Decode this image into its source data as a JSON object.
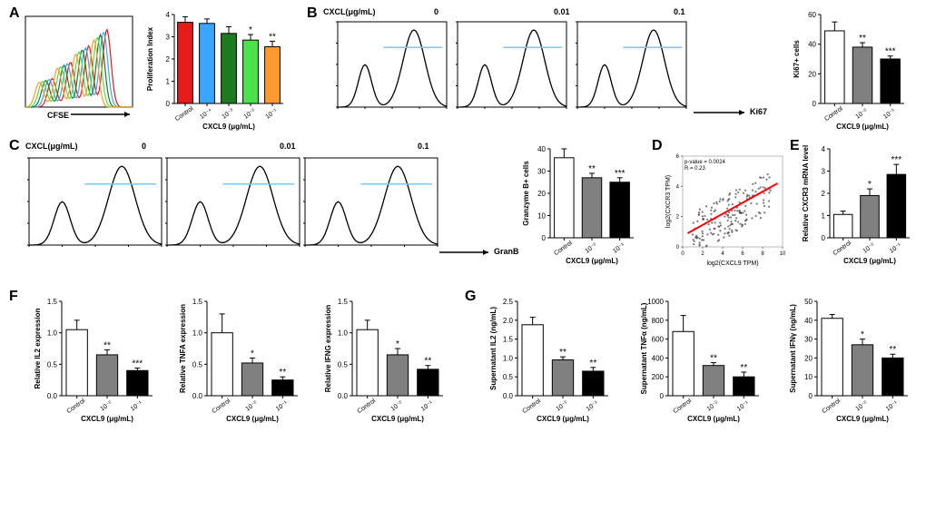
{
  "panels": {
    "A": {
      "letter": "A",
      "cfse_label": "CFSE",
      "x_title": "CXCL9 (μg/mL)",
      "y_title": "Proliferation Index",
      "cats": [
        "Control",
        "10⁻⁴",
        "10⁻³",
        "10⁻²",
        "10⁻¹"
      ],
      "bars": [
        {
          "v": 3.65,
          "err": 0.25,
          "fill": "#e51a1a",
          "stripe": false,
          "sig": ""
        },
        {
          "v": 3.6,
          "err": 0.2,
          "fill": "#3ba5ff",
          "stripe": false,
          "sig": ""
        },
        {
          "v": 3.15,
          "err": 0.3,
          "fill": "#1f7a1f",
          "stripe": false,
          "sig": ""
        },
        {
          "v": 2.85,
          "err": 0.25,
          "fill": "#4de24d",
          "stripe": false,
          "sig": "*"
        },
        {
          "v": 2.55,
          "err": 0.25,
          "fill": "#ff9a2e",
          "stripe": false,
          "sig": "**"
        }
      ],
      "ylim": [
        0,
        4
      ],
      "ytick": 1,
      "hist_colors": [
        "#e51a1a",
        "#3ba5ff",
        "#1f7a1f",
        "#4de24d",
        "#ff9a2e"
      ]
    },
    "B": {
      "letter": "B",
      "header": "CXCL(μg/mL)",
      "doses": [
        "0",
        "0.01",
        "0.1"
      ],
      "x_label": "Ki67",
      "y_title": "Ki67+ cells",
      "x_title": "CXCL9 (μg/mL)",
      "cats": [
        "Control",
        "10⁻²",
        "10⁻¹"
      ],
      "bars": [
        {
          "v": 49,
          "err": 6,
          "fill": "#ffffff",
          "pattern": "none",
          "sig": ""
        },
        {
          "v": 38,
          "err": 3,
          "fill": "#808080",
          "pattern": "none",
          "sig": "**"
        },
        {
          "v": 30,
          "err": 2,
          "fill": "#000000",
          "pattern": "none",
          "sig": "***"
        }
      ],
      "ylim": [
        0,
        60
      ],
      "ytick": 20
    },
    "C": {
      "letter": "C",
      "header": "CXCL(μg/mL)",
      "doses": [
        "0",
        "0.01",
        "0.1"
      ],
      "x_label": "GranB",
      "y_title": "Granzyme B+ cells",
      "x_title": "CXCL9 (μg/mL)",
      "cats": [
        "Control",
        "10⁻²",
        "10⁻¹"
      ],
      "bars": [
        {
          "v": 36,
          "err": 4,
          "fill": "#ffffff",
          "sig": ""
        },
        {
          "v": 27,
          "err": 2,
          "fill": "#808080",
          "sig": "**"
        },
        {
          "v": 25,
          "err": 2,
          "fill": "#000000",
          "sig": "***"
        }
      ],
      "ylim": [
        0,
        40
      ],
      "ytick": 10
    },
    "D": {
      "letter": "D",
      "p_text": "p-value = 0.0024",
      "r_text": "R = 0.23",
      "x_label": "log2(CXCL9 TPM)",
      "y_label": "log2(CXCR3 TPM)",
      "xlim": [
        0,
        10
      ],
      "ylim": [
        0,
        6
      ],
      "line_color": "#ff0000",
      "point_color": "#404040",
      "n_points": 180
    },
    "E": {
      "letter": "E",
      "y_title": "Relative CXCR3 mRNA level",
      "x_title": "CXCL9 (μg/mL)",
      "cats": [
        "Control",
        "10⁻²",
        "10⁻¹"
      ],
      "bars": [
        {
          "v": 1.05,
          "err": 0.15,
          "fill": "#ffffff",
          "sig": ""
        },
        {
          "v": 1.9,
          "err": 0.3,
          "fill": "#808080",
          "sig": "*"
        },
        {
          "v": 2.85,
          "err": 0.45,
          "fill": "#000000",
          "sig": "***"
        }
      ],
      "ylim": [
        0,
        4
      ],
      "ytick": 1
    },
    "F": {
      "letter": "F",
      "x_title": "CXCL9 (μg/mL)",
      "cats": [
        "Control",
        "10⁻²",
        "10⁻¹"
      ],
      "charts": [
        {
          "y_title": "Relative IL2 expression",
          "ylim": [
            0.0,
            1.5
          ],
          "ytick": 0.5,
          "bars": [
            {
              "v": 1.05,
              "err": 0.15,
              "fill": "#ffffff",
              "sig": ""
            },
            {
              "v": 0.65,
              "err": 0.08,
              "fill": "#808080",
              "sig": "**"
            },
            {
              "v": 0.4,
              "err": 0.04,
              "fill": "#000000",
              "sig": "***"
            }
          ]
        },
        {
          "y_title": "Relative TNFA expression",
          "ylim": [
            0.0,
            1.5
          ],
          "ytick": 0.5,
          "bars": [
            {
              "v": 1.0,
              "err": 0.3,
              "fill": "#ffffff",
              "sig": ""
            },
            {
              "v": 0.52,
              "err": 0.08,
              "fill": "#808080",
              "sig": "*"
            },
            {
              "v": 0.25,
              "err": 0.05,
              "fill": "#000000",
              "sig": "**"
            }
          ]
        },
        {
          "y_title": "Relative IFNG expression",
          "ylim": [
            0.0,
            1.5
          ],
          "ytick": 0.5,
          "bars": [
            {
              "v": 1.05,
              "err": 0.15,
              "fill": "#ffffff",
              "sig": ""
            },
            {
              "v": 0.65,
              "err": 0.1,
              "fill": "#808080",
              "sig": "*"
            },
            {
              "v": 0.42,
              "err": 0.06,
              "fill": "#000000",
              "sig": "**"
            }
          ]
        }
      ]
    },
    "G": {
      "letter": "G",
      "x_title": "CXCL9 (μg/mL)",
      "cats": [
        "Control",
        "10⁻²",
        "10⁻¹"
      ],
      "charts": [
        {
          "y_title": "Supernatant IL2 (ng/mL)",
          "ylim": [
            0.0,
            2.5
          ],
          "ytick": 0.5,
          "bars": [
            {
              "v": 1.88,
              "err": 0.2,
              "fill": "#ffffff",
              "sig": ""
            },
            {
              "v": 0.95,
              "err": 0.08,
              "fill": "#808080",
              "sig": "**"
            },
            {
              "v": 0.65,
              "err": 0.1,
              "fill": "#000000",
              "sig": "**"
            }
          ]
        },
        {
          "y_title": "Supernatant TNFα (ng/mL)",
          "ylim": [
            0,
            1000
          ],
          "ytick": 200,
          "bars": [
            {
              "v": 680,
              "err": 170,
              "fill": "#ffffff",
              "sig": ""
            },
            {
              "v": 320,
              "err": 30,
              "fill": "#808080",
              "sig": "**"
            },
            {
              "v": 200,
              "err": 50,
              "fill": "#000000",
              "sig": "**"
            }
          ]
        },
        {
          "y_title": "Supernatant IFNγ (ng/mL)",
          "ylim": [
            0,
            50
          ],
          "ytick": 10,
          "bars": [
            {
              "v": 41,
              "err": 2,
              "fill": "#ffffff",
              "sig": ""
            },
            {
              "v": 27,
              "err": 3,
              "fill": "#808080",
              "sig": "*"
            },
            {
              "v": 20,
              "err": 2,
              "fill": "#000000",
              "sig": "**"
            }
          ]
        }
      ]
    }
  },
  "layout": {
    "bar_stroke": "#000",
    "bar_stroke_w": 1,
    "cap_w": 4,
    "err_stroke": "#000"
  }
}
